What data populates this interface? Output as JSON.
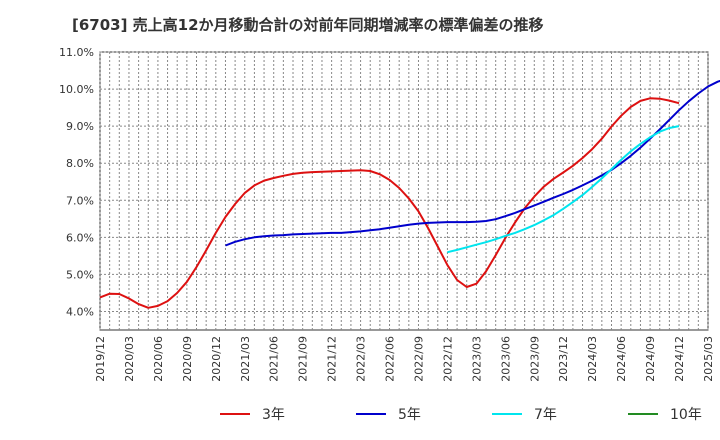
{
  "chart_data": {
    "type": "line",
    "title": "[6703]  売上高12か月移動合計の対前年同期増減率の標準偏差の推移",
    "xlabel": "",
    "ylabel": "",
    "ylim": [
      3.5,
      11.0
    ],
    "yticks": [
      "4.0%",
      "5.0%",
      "6.0%",
      "7.0%",
      "8.0%",
      "9.0%",
      "10.0%",
      "11.0%"
    ],
    "ytick_values": [
      4.0,
      5.0,
      6.0,
      7.0,
      8.0,
      9.0,
      10.0,
      11.0
    ],
    "xticks": [
      "2019/12",
      "2020/03",
      "2020/06",
      "2020/09",
      "2020/12",
      "2021/03",
      "2021/06",
      "2021/09",
      "2021/12",
      "2022/03",
      "2022/06",
      "2022/09",
      "2022/12",
      "2023/03",
      "2023/06",
      "2023/09",
      "2023/12",
      "2024/03",
      "2024/06",
      "2024/09",
      "2024/12",
      "2025/03"
    ],
    "grid": true,
    "legend_position": "bottom",
    "series": [
      {
        "name": "3年",
        "color": "#dd1111",
        "start": "2019/12",
        "values": [
          4.38,
          4.48,
          4.47,
          4.35,
          4.2,
          4.1,
          4.15,
          4.28,
          4.5,
          4.8,
          5.2,
          5.65,
          6.12,
          6.55,
          6.9,
          7.2,
          7.4,
          7.53,
          7.6,
          7.66,
          7.71,
          7.74,
          7.76,
          7.77,
          7.78,
          7.79,
          7.8,
          7.81,
          7.79,
          7.7,
          7.55,
          7.33,
          7.05,
          6.7,
          6.25,
          5.75,
          5.25,
          4.85,
          4.66,
          4.75,
          5.08,
          5.52,
          5.98,
          6.4,
          6.78,
          7.1,
          7.37,
          7.58,
          7.75,
          7.93,
          8.14,
          8.38,
          8.66,
          8.99,
          9.28,
          9.52,
          9.68,
          9.75,
          9.74,
          9.69,
          9.62
        ]
      },
      {
        "name": "5年",
        "color": "#0000cc",
        "start": "2021/01",
        "values": [
          5.78,
          5.88,
          5.95,
          6.0,
          6.03,
          6.05,
          6.06,
          6.08,
          6.09,
          6.1,
          6.11,
          6.12,
          6.12,
          6.14,
          6.16,
          6.19,
          6.22,
          6.26,
          6.3,
          6.34,
          6.37,
          6.39,
          6.4,
          6.41,
          6.41,
          6.41,
          6.42,
          6.44,
          6.49,
          6.57,
          6.66,
          6.76,
          6.86,
          6.96,
          7.07,
          7.17,
          7.28,
          7.4,
          7.53,
          7.67,
          7.82,
          8.0,
          8.2,
          8.42,
          8.66,
          8.91,
          9.17,
          9.43,
          9.67,
          9.88,
          10.07,
          10.2,
          10.28,
          10.32
        ]
      },
      {
        "name": "7年",
        "color": "#00e5ee",
        "start": "2022/12",
        "values": [
          5.6,
          5.66,
          5.73,
          5.8,
          5.87,
          5.95,
          6.04,
          6.12,
          6.22,
          6.33,
          6.46,
          6.6,
          6.77,
          6.95,
          7.14,
          7.36,
          7.59,
          7.84,
          8.09,
          8.32,
          8.52,
          8.7,
          8.85,
          8.95,
          9.0
        ]
      },
      {
        "name": "10年",
        "color": "#228b22",
        "start": "2024/12",
        "values": []
      }
    ]
  }
}
